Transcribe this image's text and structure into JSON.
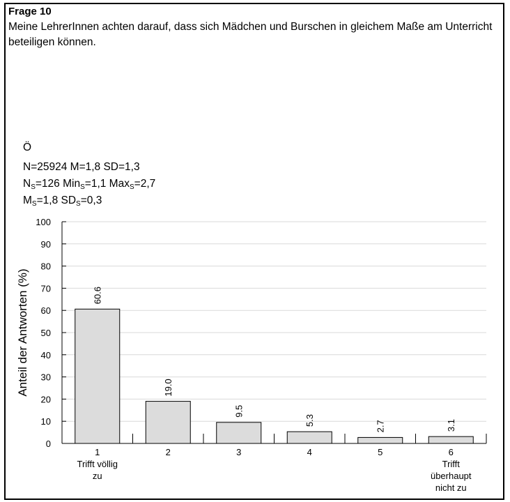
{
  "header": {
    "question_label": "Frage 10",
    "question_text": "Meine LehrerInnen achten darauf, dass sich Mädchen und Burschen in gleichem Maße am Unterricht beteiligen können."
  },
  "stats": {
    "region": "Ö",
    "line1": "N=25924 M=1,8 SD=1,3",
    "line2": {
      "n": "N",
      "n_sub": "S",
      "n_val": "=126 ",
      "min": "Min",
      "min_sub": "S",
      "min_val": "=1,1 ",
      "max": "Max",
      "max_sub": "S",
      "max_val": "=2,7"
    },
    "line3": {
      "m": "M",
      "m_sub": "S",
      "m_val": "=1,8 ",
      "sd": "SD",
      "sd_sub": "S",
      "sd_val": "=0,3"
    }
  },
  "chart_data": {
    "type": "bar",
    "categories": [
      "1",
      "2",
      "3",
      "4",
      "5",
      "6"
    ],
    "category_sublabels": [
      [
        "Trifft völlig",
        "zu"
      ],
      [],
      [],
      [],
      [],
      [
        "Trifft",
        "überhaupt",
        "nicht zu"
      ]
    ],
    "values": [
      60.6,
      19.0,
      9.5,
      5.3,
      2.7,
      3.1
    ],
    "value_labels": [
      "60.6",
      "19.0",
      "9.5",
      "5.3",
      "2.7",
      "3.1"
    ],
    "ylabel": "Anteil der Antworten (%)",
    "ylim": [
      0,
      100
    ],
    "yticks": [
      "0",
      "10",
      "20",
      "30",
      "40",
      "50",
      "60",
      "70",
      "80",
      "90",
      "100"
    ],
    "grid": true,
    "bar_color": "#dcdcdc",
    "grid_color": "#d9d9d9"
  }
}
